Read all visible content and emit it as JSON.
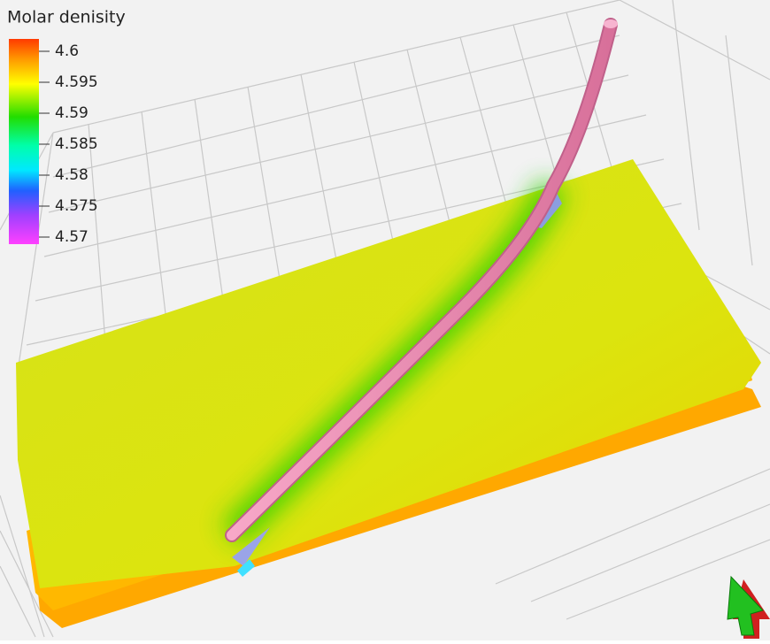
{
  "legend": {
    "title": "Molar denisity",
    "ticks": [
      4.6,
      4.595,
      4.59,
      4.585,
      4.58,
      4.575,
      4.57
    ]
  }
}
